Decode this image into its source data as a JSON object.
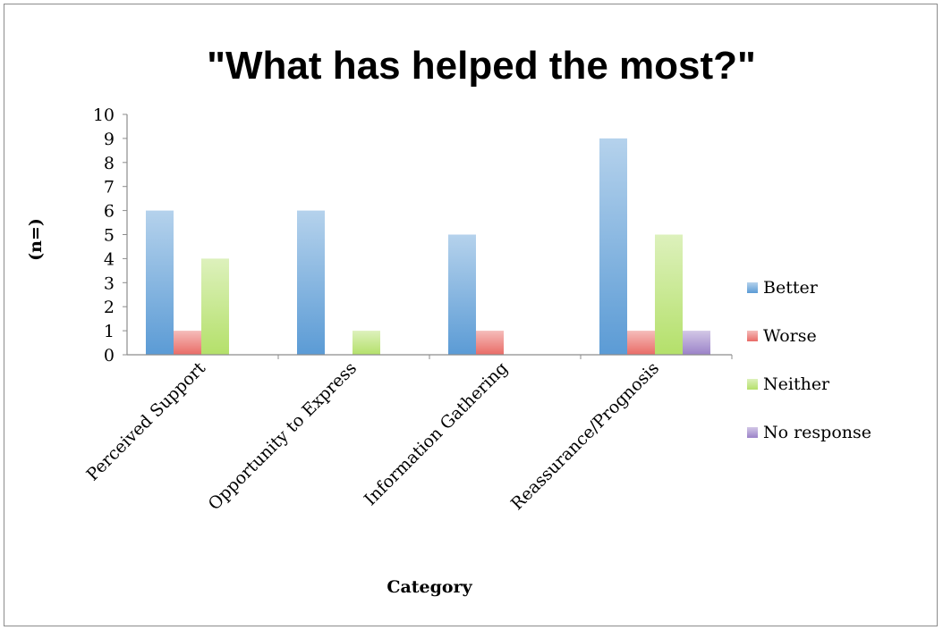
{
  "chart_data": {
    "type": "bar",
    "title": "\"What has helped the most?\"",
    "xlabel": "Category",
    "ylabel": "(n=)",
    "categories": [
      "Perceived Support",
      "Opportunity to Express",
      "Information Gathering",
      "Reassurance/Prognosis"
    ],
    "series": [
      {
        "name": "Better",
        "values": [
          6,
          6,
          5,
          9
        ],
        "color": "#5b9bd5"
      },
      {
        "name": "Worse",
        "values": [
          1,
          0,
          1,
          1
        ],
        "color": "#e96b66"
      },
      {
        "name": "Neither",
        "values": [
          4,
          1,
          0,
          5
        ],
        "color": "#b4e06a"
      },
      {
        "name": "No response",
        "values": [
          0,
          0,
          0,
          1
        ],
        "color": "#9b82c8"
      }
    ],
    "ylim": [
      0,
      10
    ],
    "yticks": [
      "0",
      "1",
      "2",
      "3",
      "4",
      "5",
      "6",
      "7",
      "8",
      "9",
      "10"
    ],
    "grid": false,
    "legend_position": "right"
  }
}
